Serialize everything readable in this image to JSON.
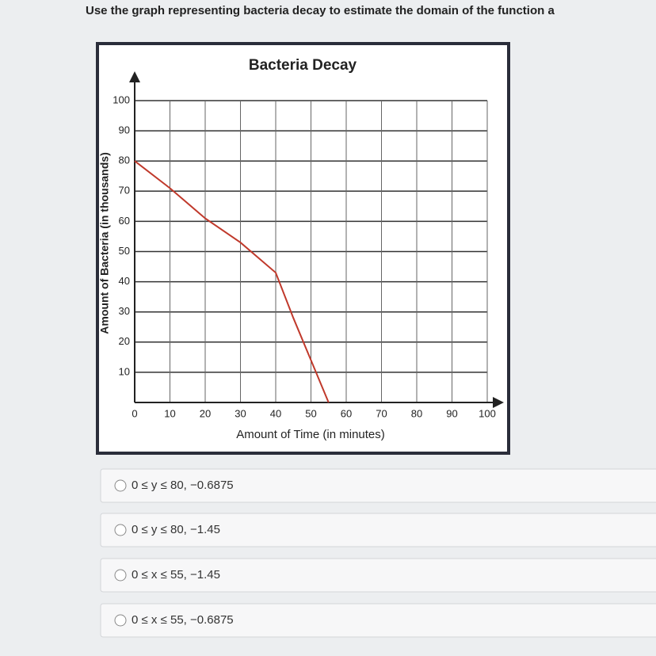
{
  "question": "Use the graph representing bacteria decay to estimate the domain of the function a",
  "chart_data": {
    "type": "line",
    "title": "Bacteria Decay",
    "x_label": "Amount of Time (in minutes)",
    "y_label": "Amount of Bacteria (in thousands)",
    "x": [
      0,
      10,
      20,
      30,
      40,
      45,
      50,
      55
    ],
    "values": [
      80,
      71,
      61,
      53,
      43,
      28,
      14,
      0
    ],
    "color": "#c0392b",
    "xlim": [
      0,
      100
    ],
    "xticks": [
      0,
      10,
      20,
      30,
      40,
      50,
      60,
      70,
      80,
      90,
      100
    ],
    "ylim": [
      0,
      100
    ],
    "yticks": [
      10,
      20,
      30,
      40,
      50,
      60,
      70,
      80,
      90,
      100
    ],
    "grid": true
  },
  "options": [
    "0 ≤ y ≤ 80, −0.6875",
    "0 ≤ y ≤ 80, −1.45",
    "0 ≤ x ≤ 55, −1.45",
    "0 ≤ x ≤ 55, −0.6875"
  ]
}
